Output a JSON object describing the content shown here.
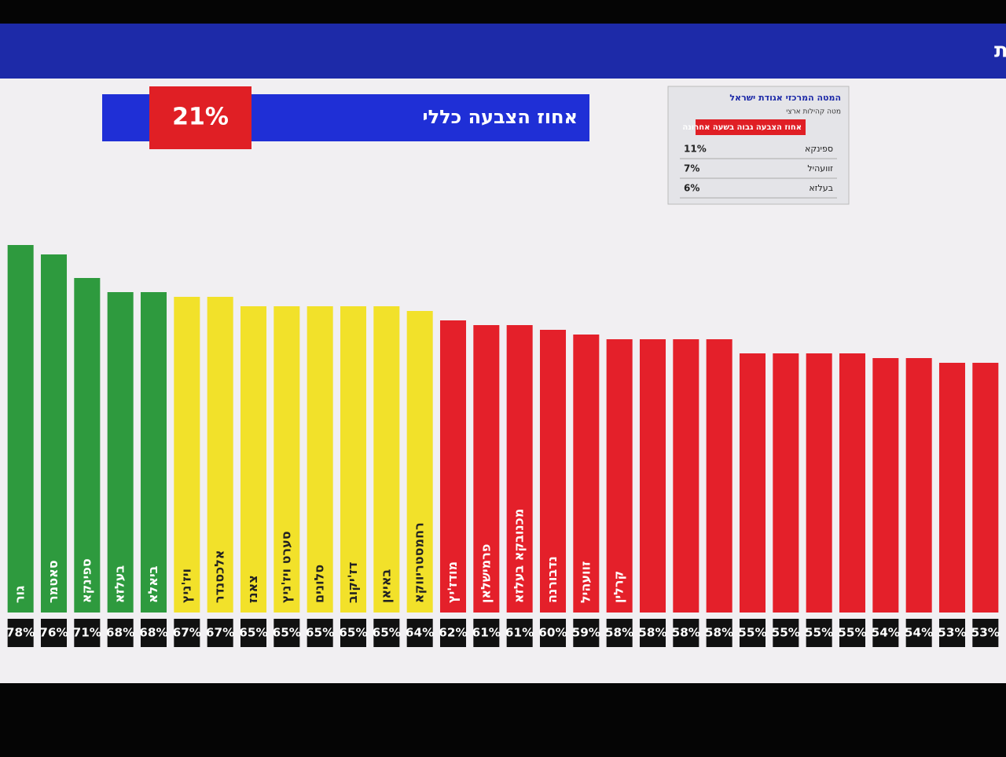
{
  "chart_data": {
    "type": "bar",
    "turnout_label": "אחוז הצבעה כללי",
    "turnout_value_label": "21%",
    "categories": [
      "גור",
      "סאטמר",
      "ספינקא",
      "בעלזא",
      "ביאלא",
      "ויז'ניץ",
      "אלכסנדר",
      "צאנז",
      "סערט ויז'ניץ",
      "סלונים",
      "דז'יקוב",
      "באיאן",
      "רחמסטריווקא",
      "מודז'יץ",
      "פרמישלאן",
      "מכנובקא בעלזא",
      "נדבורנה",
      "זוועהיל",
      "קרלין",
      null,
      null,
      null,
      null,
      null,
      null,
      null,
      null,
      null,
      null,
      null
    ],
    "values": [
      78,
      76,
      71,
      68,
      68,
      67,
      67,
      65,
      65,
      65,
      65,
      65,
      64,
      62,
      61,
      61,
      60,
      59,
      58,
      58,
      58,
      58,
      55,
      55,
      55,
      55,
      54,
      54,
      53,
      53
    ],
    "value_labels": [
      "78%",
      "76%",
      "71%",
      "68%",
      "68%",
      "67%",
      "67%",
      "65%",
      "65%",
      "65%",
      "65%",
      "65%",
      "64%",
      "62%",
      "61%",
      "61%",
      "60%",
      "59%",
      "58%",
      "58%",
      "58%",
      "58%",
      "55%",
      "55%",
      "55%",
      "55%",
      "54%",
      "54%",
      "53%",
      "53%"
    ],
    "bar_colors": [
      "#2e9a3e",
      "#2e9a3e",
      "#2e9a3e",
      "#2e9a3e",
      "#2e9a3e",
      "#f2e12a",
      "#f2e12a",
      "#f2e12a",
      "#f2e12a",
      "#f2e12a",
      "#f2e12a",
      "#f2e12a",
      "#f2e12a",
      "#e4202a",
      "#e4202a",
      "#e4202a",
      "#e4202a",
      "#e4202a",
      "#e4202a",
      "#e4202a",
      "#e4202a",
      "#e4202a",
      "#e4202a",
      "#e4202a",
      "#e4202a",
      "#e4202a",
      "#e4202a",
      "#e4202a",
      "#e4202a",
      "#e4202a"
    ]
  },
  "hourly_table": {
    "title": "המטה המרכזי אגודת ישראל",
    "subtitle": "מטה קהילות ארצי",
    "header": "אחוז הצבעה גבוה בשעה אחרונה",
    "rows": [
      [
        "ספינקא",
        "11%"
      ],
      [
        "זוועהיל",
        "7%"
      ],
      [
        "בעלזא",
        "6%"
      ]
    ]
  },
  "logo": "האמת"
}
